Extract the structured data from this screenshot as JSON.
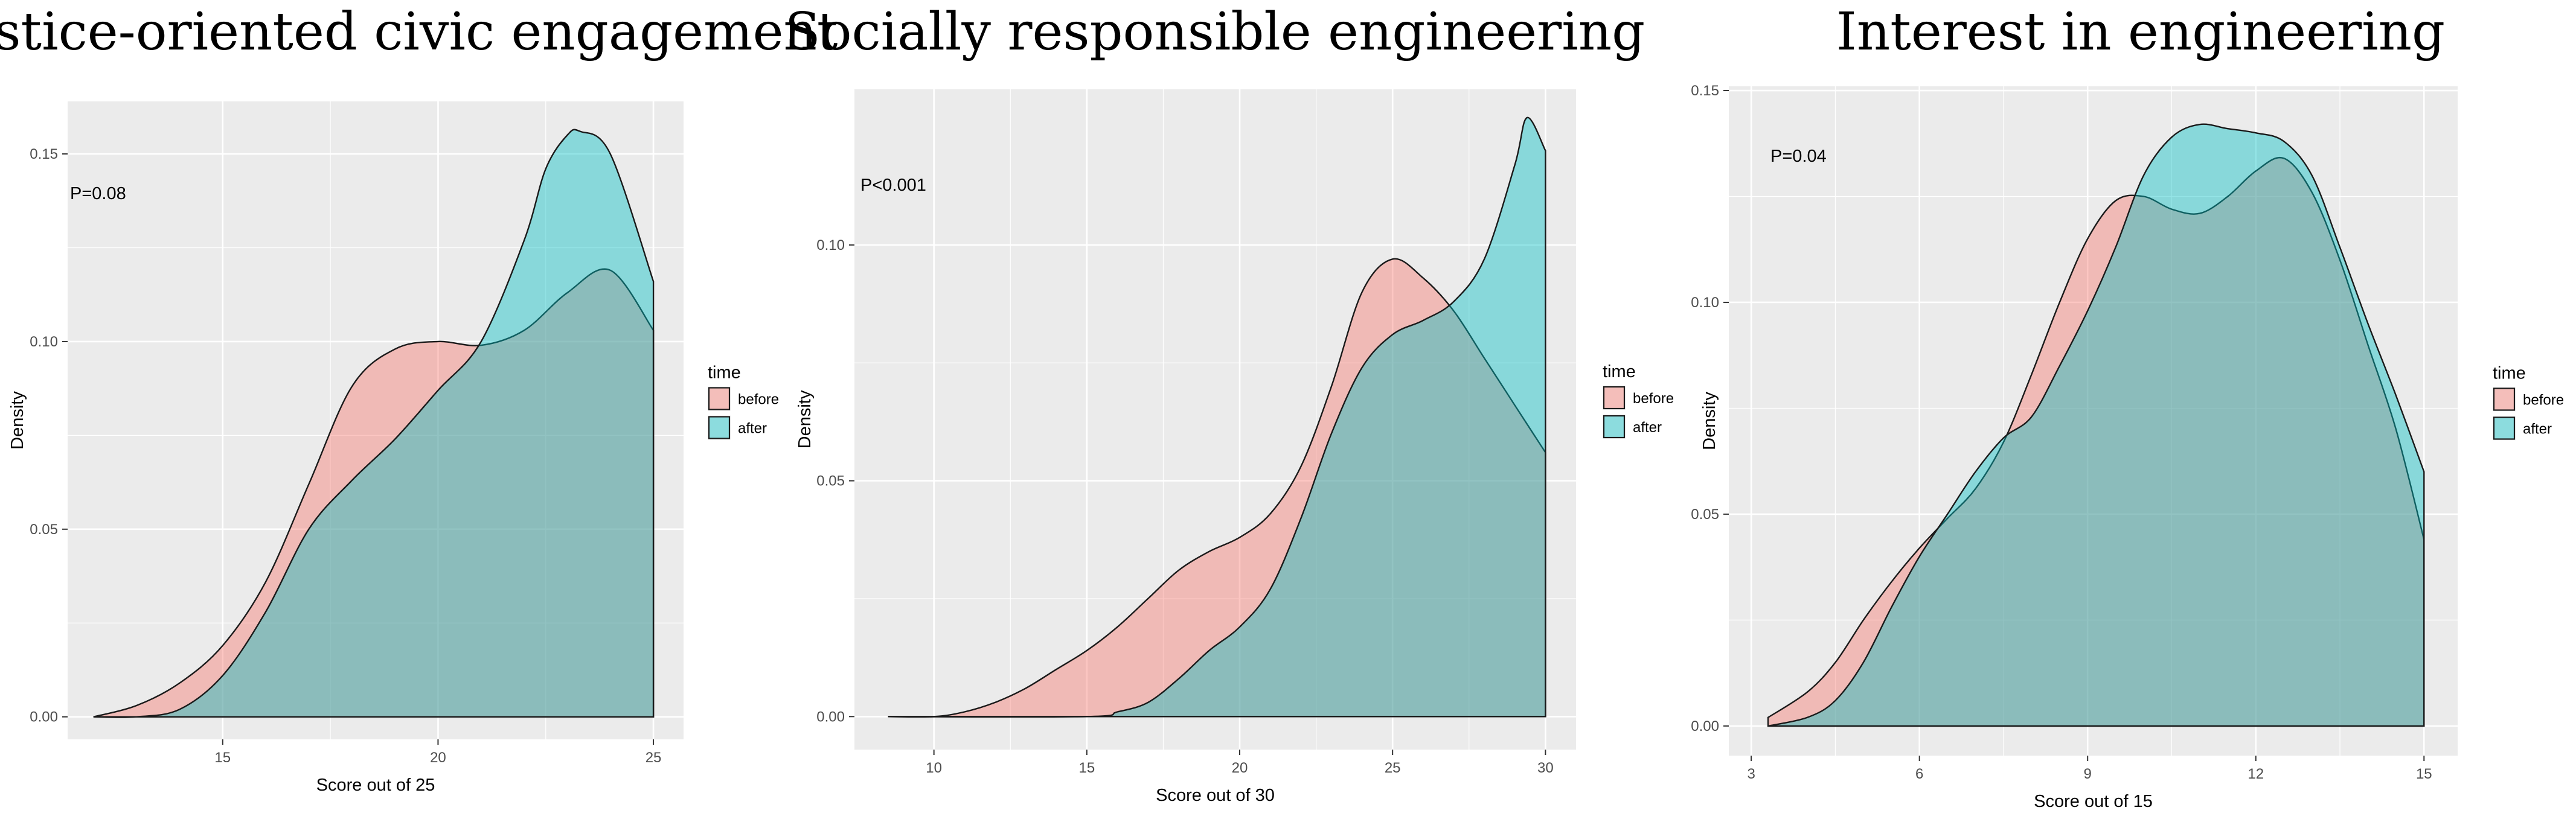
{
  "colors": {
    "before": "#F8766D",
    "after": "#00BFC4",
    "panel_bg": "#EBEBEB",
    "grid": "#FFFFFF"
  },
  "chart_data": [
    {
      "type": "area",
      "title": "Justice-oriented civic engagement",
      "xlabel": "Score out of 25",
      "ylabel": "Density",
      "annotation": "P=0.08",
      "xlim": [
        11.4,
        25.7
      ],
      "ylim": [
        -0.006,
        0.164
      ],
      "x_ticks": [
        15,
        20,
        25
      ],
      "y_ticks": [
        0.0,
        0.05,
        0.1,
        0.15
      ],
      "y_tick_labels": [
        "0.00",
        "0.05",
        "0.10",
        "0.15"
      ],
      "legend_title": "time",
      "series": [
        {
          "name": "before",
          "x": [
            12,
            13,
            14,
            15,
            16,
            17,
            18,
            19,
            20,
            21,
            22,
            23,
            24,
            25
          ],
          "values": [
            0.0,
            0.003,
            0.009,
            0.019,
            0.036,
            0.062,
            0.088,
            0.098,
            0.1,
            0.099,
            0.103,
            0.113,
            0.119,
            0.103
          ]
        },
        {
          "name": "after",
          "x": [
            12,
            13,
            14,
            15,
            16,
            17,
            18,
            19,
            20,
            21,
            22,
            22.5,
            23,
            23.3,
            24,
            25
          ],
          "values": [
            0.0,
            0.0,
            0.002,
            0.011,
            0.028,
            0.05,
            0.063,
            0.074,
            0.087,
            0.1,
            0.127,
            0.146,
            0.155,
            0.156,
            0.15,
            0.116
          ]
        }
      ]
    },
    {
      "type": "area",
      "title": "Socially responsible engineering",
      "xlabel": "Score out of 30",
      "ylabel": "Density",
      "annotation": "P<0.001",
      "xlim": [
        7.4,
        31.0
      ],
      "ylim": [
        -0.007,
        0.133
      ],
      "x_ticks": [
        10,
        15,
        20,
        25,
        30
      ],
      "y_ticks": [
        0.0,
        0.05,
        0.1
      ],
      "y_tick_labels": [
        "0.00",
        "0.05",
        "0.10"
      ],
      "legend_title": "time",
      "series": [
        {
          "name": "before",
          "x": [
            8.5,
            10,
            11,
            12,
            13,
            14,
            15,
            16,
            17,
            18,
            19,
            20,
            21,
            22,
            23,
            24,
            25,
            26,
            27,
            28,
            29,
            30
          ],
          "values": [
            0.0,
            0.0,
            0.001,
            0.003,
            0.006,
            0.01,
            0.014,
            0.019,
            0.025,
            0.031,
            0.035,
            0.038,
            0.043,
            0.053,
            0.07,
            0.09,
            0.097,
            0.093,
            0.086,
            0.076,
            0.066,
            0.056
          ]
        },
        {
          "name": "after",
          "x": [
            8.5,
            15,
            16,
            17,
            18,
            19,
            20,
            21,
            22,
            23,
            24,
            25,
            26,
            27,
            28,
            29,
            29.4,
            30
          ],
          "values": [
            0.0,
            0.0,
            0.001,
            0.003,
            0.008,
            0.014,
            0.019,
            0.027,
            0.042,
            0.06,
            0.074,
            0.081,
            0.084,
            0.088,
            0.097,
            0.117,
            0.127,
            0.12
          ]
        }
      ]
    },
    {
      "type": "area",
      "title": "Interest in engineering",
      "xlabel": "Score out of 15",
      "ylabel": "Density",
      "annotation": "P=0.04",
      "xlim": [
        2.6,
        15.6
      ],
      "ylim": [
        -0.007,
        0.151
      ],
      "x_ticks": [
        3,
        6,
        9,
        12,
        15
      ],
      "y_ticks": [
        0.0,
        0.05,
        0.1,
        0.15
      ],
      "y_tick_labels": [
        "0.00",
        "0.05",
        "0.10",
        "0.15"
      ],
      "legend_title": "time",
      "series": [
        {
          "name": "before",
          "x": [
            3.3,
            4,
            4.5,
            5,
            5.5,
            6,
            6.5,
            7,
            7.5,
            8,
            8.5,
            9,
            9.5,
            10,
            10.5,
            11,
            11.5,
            12,
            12.5,
            13,
            13.5,
            14,
            14.5,
            15
          ],
          "values": [
            0.002,
            0.008,
            0.015,
            0.025,
            0.034,
            0.042,
            0.049,
            0.056,
            0.067,
            0.083,
            0.1,
            0.115,
            0.124,
            0.125,
            0.122,
            0.121,
            0.125,
            0.131,
            0.134,
            0.126,
            0.11,
            0.09,
            0.07,
            0.044
          ]
        },
        {
          "name": "after",
          "x": [
            3.3,
            4,
            4.5,
            5,
            5.5,
            6,
            6.5,
            7,
            7.5,
            8,
            8.5,
            9,
            9.5,
            10,
            10.5,
            11,
            11.5,
            12,
            12.5,
            13,
            13.5,
            14,
            14.5,
            15
          ],
          "values": [
            0.0,
            0.002,
            0.006,
            0.015,
            0.028,
            0.04,
            0.05,
            0.06,
            0.068,
            0.073,
            0.085,
            0.098,
            0.113,
            0.13,
            0.139,
            0.142,
            0.141,
            0.14,
            0.138,
            0.13,
            0.113,
            0.095,
            0.078,
            0.06
          ]
        }
      ]
    }
  ]
}
